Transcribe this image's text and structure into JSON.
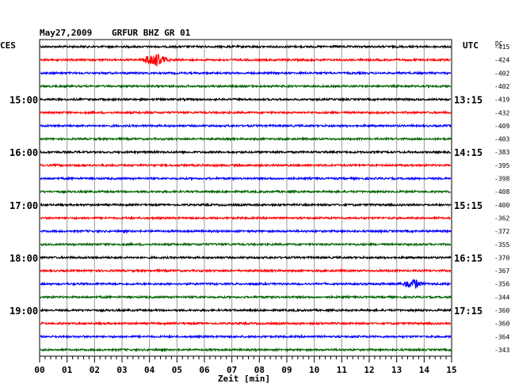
{
  "header": {
    "date": "May27,2009",
    "station": "GRFUR BHZ GR 01",
    "left_zone": "CES",
    "right_zone": "UTC",
    "dc_label": "DC"
  },
  "chart_data": {
    "type": "line",
    "title": "May27,2009   GRFUR BHZ GR 01",
    "xlabel": "Zeit [min]",
    "x_ticks": [
      "00",
      "01",
      "02",
      "03",
      "04",
      "05",
      "06",
      "07",
      "08",
      "09",
      "10",
      "11",
      "12",
      "13",
      "14",
      "15"
    ],
    "xlim": [
      0,
      15
    ],
    "trace_count": 24,
    "trace_colors": [
      "#000000",
      "#ff0000",
      "#0000ff",
      "#006400"
    ],
    "left_time_labels": [
      {
        "trace": 4,
        "label": "15:00"
      },
      {
        "trace": 8,
        "label": "16:00"
      },
      {
        "trace": 12,
        "label": "17:00"
      },
      {
        "trace": 16,
        "label": "18:00"
      },
      {
        "trace": 20,
        "label": "19:00"
      }
    ],
    "right_time_labels": [
      {
        "trace": 4,
        "label": "13:15"
      },
      {
        "trace": 8,
        "label": "14:15"
      },
      {
        "trace": 12,
        "label": "15:15"
      },
      {
        "trace": 16,
        "label": "16:15"
      },
      {
        "trace": 20,
        "label": "17:15"
      }
    ],
    "dc_offsets": [
      "-415",
      "-424",
      "-402",
      "-402",
      "-419",
      "-432",
      "-409",
      "-403",
      "-383",
      "-395",
      "-398",
      "-408",
      "-400",
      "-362",
      "-372",
      "-355",
      "-370",
      "-367",
      "-356",
      "-344",
      "-360",
      "-360",
      "-364",
      "-343"
    ],
    "events": [
      {
        "trace": 1,
        "minute": 4.2,
        "amplitude": 9
      },
      {
        "trace": 18,
        "minute": 13.6,
        "amplitude": 6
      }
    ]
  }
}
